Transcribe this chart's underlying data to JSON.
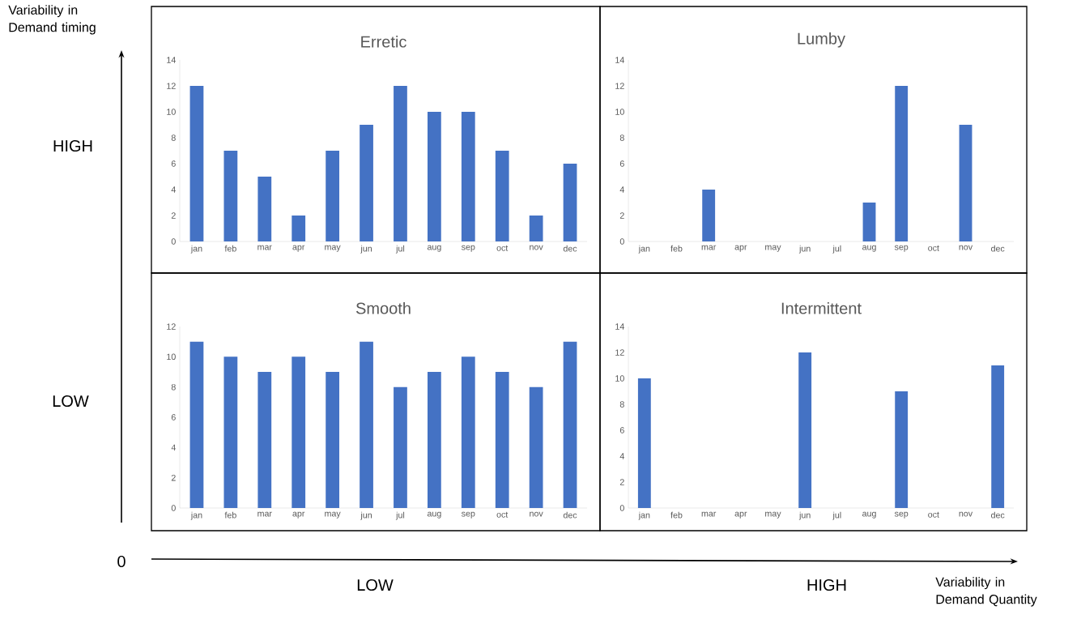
{
  "chart_data": [
    {
      "type": "bar",
      "title": "Erretic",
      "categories": [
        "jan",
        "feb",
        "mar",
        "apr",
        "may",
        "jun",
        "jul",
        "aug",
        "sep",
        "oct",
        "nov",
        "dec"
      ],
      "values": [
        12,
        7,
        5,
        2,
        7,
        9,
        12,
        10,
        10,
        7,
        2,
        6
      ],
      "color": "#4472c4",
      "ylim": [
        0,
        14
      ],
      "yticks": [
        0,
        2,
        4,
        6,
        8,
        10,
        12,
        14
      ]
    },
    {
      "type": "bar",
      "title": "Lumby",
      "categories": [
        "jan",
        "feb",
        "mar",
        "apr",
        "may",
        "jun",
        "jul",
        "aug",
        "sep",
        "oct",
        "nov",
        "dec"
      ],
      "values": [
        0,
        0,
        4,
        0,
        0,
        0,
        0,
        3,
        12,
        0,
        9,
        0
      ],
      "color": "#4472c4",
      "ylim": [
        0,
        14
      ],
      "yticks": [
        0,
        2,
        4,
        6,
        8,
        10,
        12,
        14
      ]
    },
    {
      "type": "bar",
      "title": "Smooth",
      "categories": [
        "jan",
        "feb",
        "mar",
        "apr",
        "may",
        "jun",
        "jul",
        "aug",
        "sep",
        "oct",
        "nov",
        "dec"
      ],
      "values": [
        11,
        10,
        9,
        10,
        9,
        11,
        8,
        9,
        10,
        9,
        8,
        11
      ],
      "color": "#4472c4",
      "ylim": [
        0,
        12
      ],
      "yticks": [
        0,
        2,
        4,
        6,
        8,
        10,
        12
      ]
    },
    {
      "type": "bar",
      "title": "Intermittent",
      "categories": [
        "jan",
        "feb",
        "mar",
        "apr",
        "may",
        "jun",
        "jul",
        "aug",
        "sep",
        "oct",
        "nov",
        "dec"
      ],
      "values": [
        10,
        0,
        0,
        0,
        0,
        12,
        0,
        0,
        9,
        0,
        0,
        11
      ],
      "color": "#4472c4",
      "ylim": [
        0,
        14
      ],
      "yticks": [
        0,
        2,
        4,
        6,
        8,
        10,
        12,
        14
      ]
    },
    {
      "type": "other",
      "annotations": [
        "Variability in Demand timing",
        "HIGH",
        "LOW",
        "0",
        "LOW",
        "HIGH",
        "Variability in Demand Quantity"
      ]
    }
  ]
}
